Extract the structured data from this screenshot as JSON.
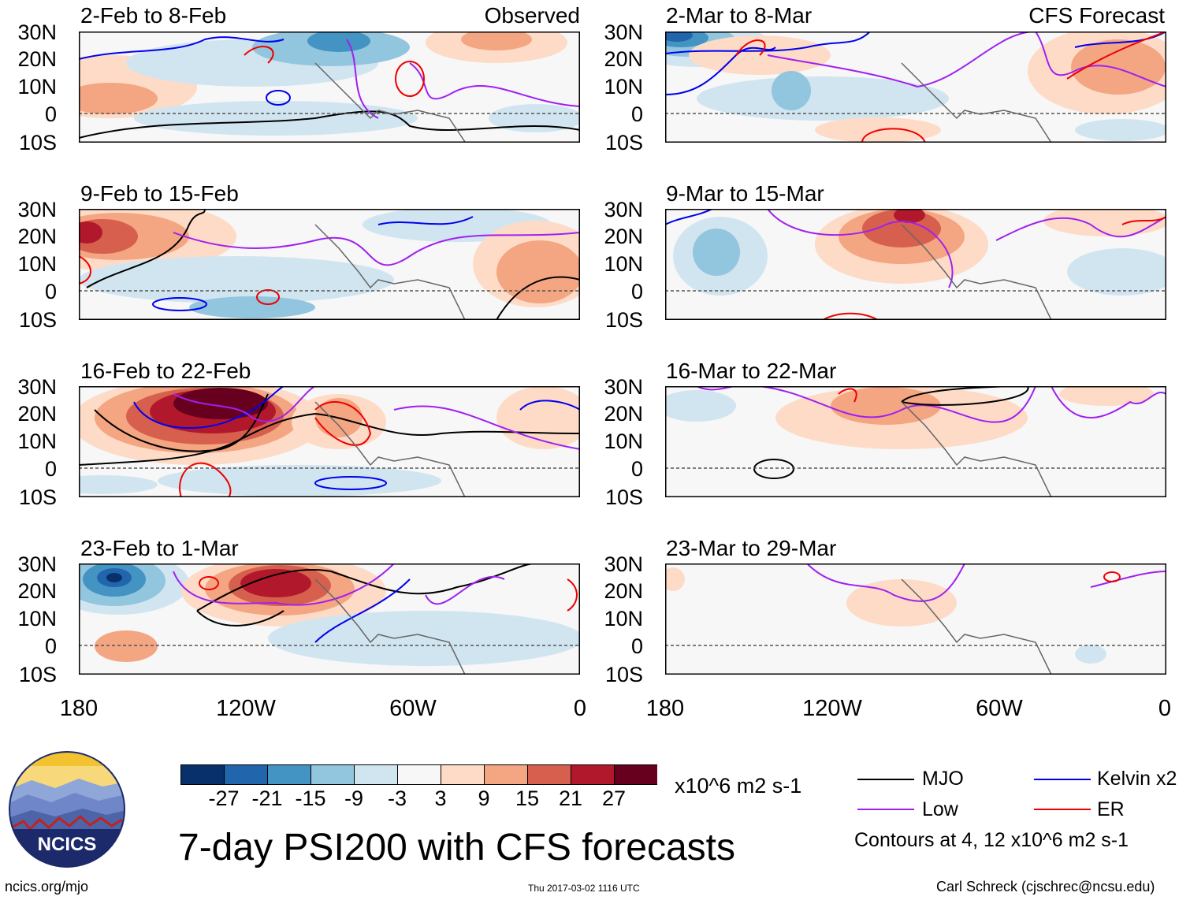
{
  "panels": {
    "left": [
      {
        "period": "2-Feb to 8-Feb",
        "label": "Observed"
      },
      {
        "period": "9-Feb to 15-Feb"
      },
      {
        "period": "16-Feb to 22-Feb"
      },
      {
        "period": "23-Feb to 1-Mar"
      }
    ],
    "right": [
      {
        "period": "2-Mar to 8-Mar",
        "label": "CFS Forecast"
      },
      {
        "period": "9-Mar to 15-Mar"
      },
      {
        "period": "16-Mar to 22-Mar"
      },
      {
        "period": "23-Mar to 29-Mar"
      }
    ]
  },
  "axes": {
    "lat_labels": [
      "30N",
      "20N",
      "10N",
      "0",
      "10S"
    ],
    "lon_labels": [
      "180",
      "120W",
      "60W",
      "0"
    ]
  },
  "colorbar": {
    "labels": [
      "-27",
      "-21",
      "-15",
      "-9",
      "-3",
      "3",
      "9",
      "15",
      "21",
      "27"
    ],
    "units": "x10^6 m2 s-1",
    "colors": [
      "#08306b",
      "#2166ac",
      "#4393c3",
      "#92c5de",
      "#d1e5f0",
      "#f7f7f7",
      "#fddbc7",
      "#f4a582",
      "#d6604d",
      "#b2182b",
      "#67001f"
    ]
  },
  "legend": {
    "items": [
      {
        "label": "MJO",
        "color": "#000000"
      },
      {
        "label": "Kelvin x2",
        "color": "#0000ee"
      },
      {
        "label": "Low",
        "color": "#a020f0"
      },
      {
        "label": "ER",
        "color": "#ee0000"
      }
    ],
    "note": "Contours at 4, 12 x10^6 m2 s-1"
  },
  "logo": {
    "text": "NCICS"
  },
  "title": "7-day PSI200 with CFS forecasts",
  "footer": {
    "left": "ncics.org/mjo",
    "center": "Thu 2017-03-02 1116 UTC",
    "right": "Carl Schreck (cjschrec@ncsu.edu)"
  }
}
